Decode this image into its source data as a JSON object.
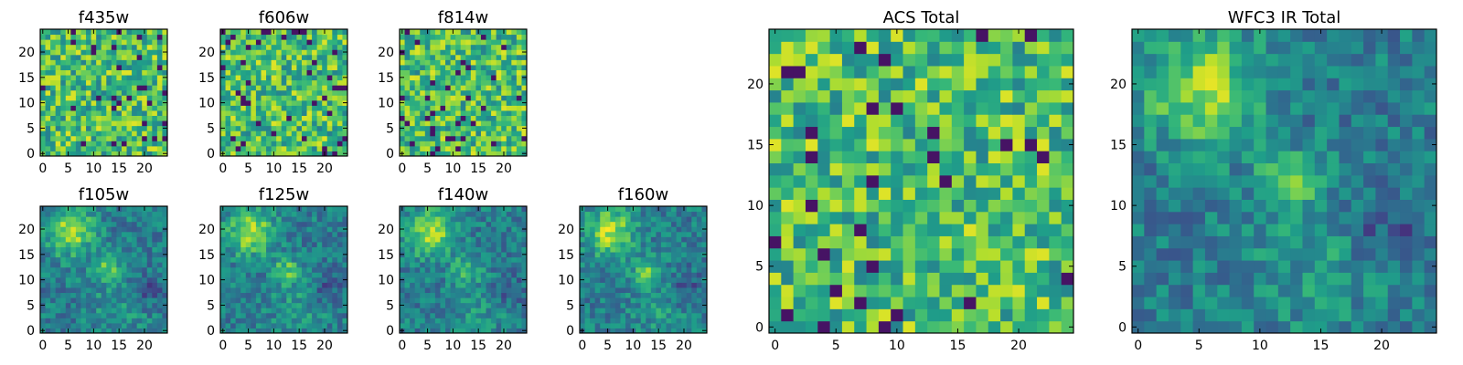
{
  "chart_data": [
    {
      "type": "heatmap",
      "title": "f435w",
      "xlim": [
        -0.5,
        24.5
      ],
      "ylim": [
        -0.5,
        24.5
      ],
      "xticks": [
        0,
        5,
        10,
        15,
        20
      ],
      "yticks": [
        0,
        5,
        10,
        15,
        20
      ],
      "colormap": "viridis",
      "grid": false
    },
    {
      "type": "heatmap",
      "title": "f606w",
      "xlim": [
        -0.5,
        24.5
      ],
      "ylim": [
        -0.5,
        24.5
      ],
      "xticks": [
        0,
        5,
        10,
        15,
        20
      ],
      "yticks": [
        0,
        5,
        10,
        15,
        20
      ],
      "colormap": "viridis",
      "grid": false
    },
    {
      "type": "heatmap",
      "title": "f814w",
      "xlim": [
        -0.5,
        24.5
      ],
      "ylim": [
        -0.5,
        24.5
      ],
      "xticks": [
        0,
        5,
        10,
        15,
        20
      ],
      "yticks": [
        0,
        5,
        10,
        15,
        20
      ],
      "colormap": "viridis",
      "grid": false
    },
    {
      "type": "heatmap",
      "title": "f105w",
      "xlim": [
        -0.5,
        24.5
      ],
      "ylim": [
        -0.5,
        24.5
      ],
      "xticks": [
        0,
        5,
        10,
        15,
        20
      ],
      "yticks": [
        0,
        5,
        10,
        15,
        20
      ],
      "colormap": "viridis",
      "grid": false
    },
    {
      "type": "heatmap",
      "title": "f125w",
      "xlim": [
        -0.5,
        24.5
      ],
      "ylim": [
        -0.5,
        24.5
      ],
      "xticks": [
        0,
        5,
        10,
        15,
        20
      ],
      "yticks": [
        0,
        5,
        10,
        15,
        20
      ],
      "colormap": "viridis",
      "grid": false
    },
    {
      "type": "heatmap",
      "title": "f140w",
      "xlim": [
        -0.5,
        24.5
      ],
      "ylim": [
        -0.5,
        24.5
      ],
      "xticks": [
        0,
        5,
        10,
        15,
        20
      ],
      "yticks": [
        0,
        5,
        10,
        15,
        20
      ],
      "colormap": "viridis",
      "grid": false
    },
    {
      "type": "heatmap",
      "title": "f160w",
      "xlim": [
        -0.5,
        24.5
      ],
      "ylim": [
        -0.5,
        24.5
      ],
      "xticks": [
        0,
        5,
        10,
        15,
        20
      ],
      "yticks": [
        0,
        5,
        10,
        15,
        20
      ],
      "colormap": "viridis",
      "grid": false
    },
    {
      "type": "heatmap",
      "title": "ACS Total",
      "xlim": [
        -0.5,
        24.5
      ],
      "ylim": [
        -0.5,
        24.5
      ],
      "xticks": [
        0,
        5,
        10,
        15,
        20
      ],
      "yticks": [
        0,
        5,
        10,
        15,
        20
      ],
      "colormap": "viridis",
      "grid": false
    },
    {
      "type": "heatmap",
      "title": "WFC3 IR Total",
      "xlim": [
        -0.5,
        24.5
      ],
      "ylim": [
        -0.5,
        24.5
      ],
      "xticks": [
        0,
        5,
        10,
        15,
        20
      ],
      "yticks": [
        0,
        5,
        10,
        15,
        20
      ],
      "colormap": "viridis",
      "grid": false
    }
  ]
}
